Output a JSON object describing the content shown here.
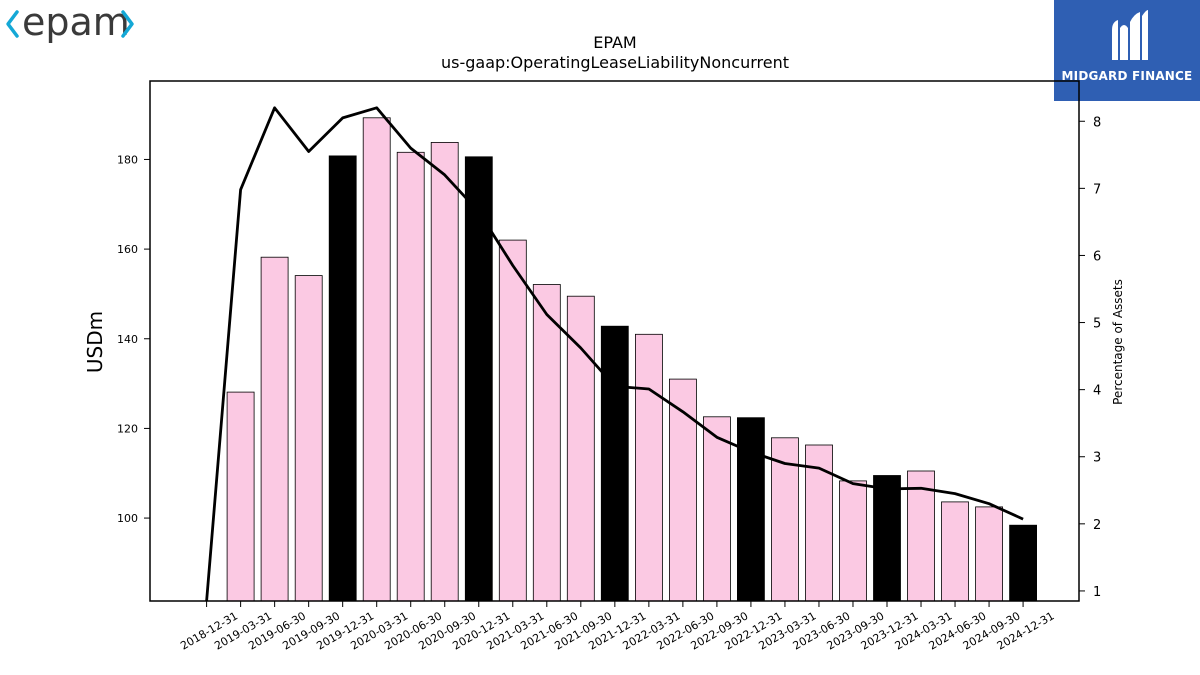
{
  "brand": {
    "company_logo_text": "epam",
    "watermark_text": "MIDGARD FINANCE"
  },
  "colors": {
    "bar_pink": "#fbc9e3",
    "bar_black": "#000000",
    "line": "#000000",
    "logo_cyan": "#14a8d6",
    "logo_dark": "#3a3a3a",
    "watermark_bg": "#2f5fb3"
  },
  "chart_data": {
    "type": "bar",
    "title": "EPAM",
    "subtitle": "us-gaap:OperatingLeaseLiabilityNoncurrent",
    "ylabel": "USDm",
    "y2label": "Percentage of Assets",
    "ylim": [
      81.5,
      197.5
    ],
    "y2lim": [
      0.85,
      8.6
    ],
    "yticks": [
      100,
      120,
      140,
      160,
      180
    ],
    "y2ticks": [
      1,
      2,
      3,
      4,
      5,
      6,
      7,
      8
    ],
    "categories": [
      "2018-12-31",
      "2019-03-31",
      "2019-06-30",
      "2019-09-30",
      "2019-12-31",
      "2020-03-31",
      "2020-06-30",
      "2020-09-30",
      "2020-12-31",
      "2021-03-31",
      "2021-06-30",
      "2021-09-30",
      "2021-12-31",
      "2022-03-31",
      "2022-06-30",
      "2022-09-30",
      "2022-12-31",
      "2023-03-31",
      "2023-06-30",
      "2023-09-30",
      "2023-12-31",
      "2024-03-31",
      "2024-06-30",
      "2024-09-30",
      "2024-12-31"
    ],
    "series": [
      {
        "type": "bar",
        "values": [
          null,
          128.1,
          158.2,
          154.1,
          180.8,
          189.3,
          181.6,
          183.8,
          180.6,
          162.0,
          152.1,
          149.5,
          142.8,
          141.0,
          131.0,
          122.6,
          122.4,
          117.9,
          116.3,
          108.3,
          109.5,
          110.5,
          103.6,
          102.5,
          98.4
        ],
        "highlight_year_end": true
      },
      {
        "type": "line",
        "axis": "right",
        "values": [
          0.85,
          6.98,
          8.2,
          7.55,
          8.05,
          8.2,
          7.6,
          7.2,
          6.65,
          5.85,
          5.12,
          4.62,
          4.05,
          4.01,
          3.67,
          3.29,
          3.07,
          2.9,
          2.83,
          2.6,
          2.52,
          2.53,
          2.45,
          2.3,
          2.07
        ]
      }
    ],
    "grid": false,
    "legend": "none"
  }
}
